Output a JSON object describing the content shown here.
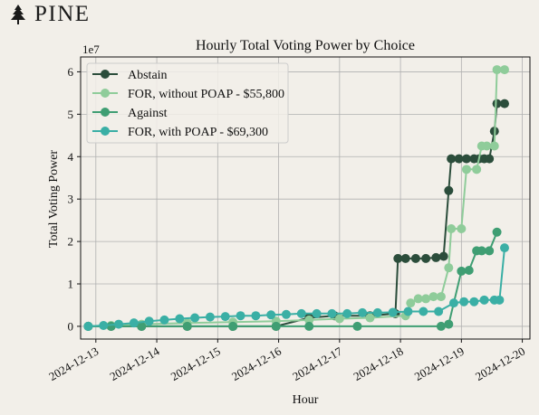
{
  "brand": {
    "logo_text": "PINE",
    "logo_icon": "pine-tree-icon"
  },
  "chart_data": {
    "type": "line",
    "title": "Hourly Total Voting Power by Choice",
    "xlabel": "Hour",
    "ylabel": "Total Voting Power",
    "y_scale_label": "1e7",
    "y_unit_multiplier": 10000000,
    "xlim": [
      "2024-12-12T18:00",
      "2024-12-20T03:00"
    ],
    "ylim": [
      -0.3,
      6.35
    ],
    "x_ticks": [
      "2024-12-13",
      "2024-12-14",
      "2024-12-15",
      "2024-12-16",
      "2024-12-17",
      "2024-12-18",
      "2024-12-19",
      "2024-12-20"
    ],
    "y_ticks": [
      0,
      1,
      2,
      3,
      4,
      5,
      6
    ],
    "grid": true,
    "legend_position": "top-left",
    "series": [
      {
        "name": "Abstain",
        "color": "#2b4d3b",
        "points": [
          [
            "2024-12-12T21:00",
            0.0
          ],
          [
            "2024-12-13T06:00",
            0.0
          ],
          [
            "2024-12-13T18:00",
            0.0
          ],
          [
            "2024-12-14T12:00",
            0.0
          ],
          [
            "2024-12-15T06:00",
            0.0
          ],
          [
            "2024-12-15T23:00",
            0.0
          ],
          [
            "2024-12-16T12:00",
            0.2
          ],
          [
            "2024-12-16T22:00",
            0.25
          ],
          [
            "2024-12-17T12:00",
            0.25
          ],
          [
            "2024-12-17T22:00",
            0.3
          ],
          [
            "2024-12-17T23:00",
            1.6
          ],
          [
            "2024-12-18T02:00",
            1.6
          ],
          [
            "2024-12-18T06:00",
            1.6
          ],
          [
            "2024-12-18T10:00",
            1.6
          ],
          [
            "2024-12-18T14:00",
            1.62
          ],
          [
            "2024-12-18T17:00",
            1.65
          ],
          [
            "2024-12-18T19:00",
            3.2
          ],
          [
            "2024-12-18T20:00",
            3.95
          ],
          [
            "2024-12-18T23:00",
            3.95
          ],
          [
            "2024-12-19T02:00",
            3.95
          ],
          [
            "2024-12-19T05:00",
            3.95
          ],
          [
            "2024-12-19T07:00",
            3.95
          ],
          [
            "2024-12-19T09:00",
            3.95
          ],
          [
            "2024-12-19T11:00",
            3.95
          ],
          [
            "2024-12-19T13:00",
            4.6
          ],
          [
            "2024-12-19T14:00",
            5.25
          ],
          [
            "2024-12-19T17:00",
            5.25
          ]
        ]
      },
      {
        "name": "FOR, without POAP - $55,800",
        "color": "#8fcc9a",
        "points": [
          [
            "2024-12-12T21:00",
            0.0
          ],
          [
            "2024-12-13T06:00",
            0.02
          ],
          [
            "2024-12-13T18:00",
            0.05
          ],
          [
            "2024-12-14T12:00",
            0.08
          ],
          [
            "2024-12-15T06:00",
            0.1
          ],
          [
            "2024-12-15T23:00",
            0.12
          ],
          [
            "2024-12-16T12:00",
            0.15
          ],
          [
            "2024-12-17T00:00",
            0.18
          ],
          [
            "2024-12-17T12:00",
            0.2
          ],
          [
            "2024-12-18T02:00",
            0.25
          ],
          [
            "2024-12-18T04:00",
            0.55
          ],
          [
            "2024-12-18T07:00",
            0.65
          ],
          [
            "2024-12-18T10:00",
            0.65
          ],
          [
            "2024-12-18T13:00",
            0.7
          ],
          [
            "2024-12-18T16:00",
            0.7
          ],
          [
            "2024-12-18T19:00",
            1.38
          ],
          [
            "2024-12-18T20:00",
            2.3
          ],
          [
            "2024-12-19T00:00",
            2.3
          ],
          [
            "2024-12-19T02:00",
            3.7
          ],
          [
            "2024-12-19T06:00",
            3.7
          ],
          [
            "2024-12-19T08:00",
            4.25
          ],
          [
            "2024-12-19T10:00",
            4.25
          ],
          [
            "2024-12-19T13:00",
            4.25
          ],
          [
            "2024-12-19T14:00",
            6.05
          ],
          [
            "2024-12-19T17:00",
            6.05
          ]
        ]
      },
      {
        "name": "Against",
        "color": "#3f9e73",
        "points": [
          [
            "2024-12-12T21:00",
            0.0
          ],
          [
            "2024-12-13T06:00",
            0.0
          ],
          [
            "2024-12-13T18:00",
            0.0
          ],
          [
            "2024-12-14T12:00",
            0.0
          ],
          [
            "2024-12-15T06:00",
            0.0
          ],
          [
            "2024-12-15T23:00",
            0.0
          ],
          [
            "2024-12-16T12:00",
            0.0
          ],
          [
            "2024-12-17T07:00",
            0.0
          ],
          [
            "2024-12-18T16:00",
            0.0
          ],
          [
            "2024-12-18T19:00",
            0.05
          ],
          [
            "2024-12-19T00:00",
            1.3
          ],
          [
            "2024-12-19T03:00",
            1.32
          ],
          [
            "2024-12-19T06:00",
            1.78
          ],
          [
            "2024-12-19T08:00",
            1.78
          ],
          [
            "2024-12-19T11:00",
            1.78
          ],
          [
            "2024-12-19T14:00",
            2.22
          ]
        ]
      },
      {
        "name": "FOR, with POAP - $69,300",
        "color": "#3aafa5",
        "points": [
          [
            "2024-12-12T21:00",
            0.0
          ],
          [
            "2024-12-13T03:00",
            0.02
          ],
          [
            "2024-12-13T09:00",
            0.05
          ],
          [
            "2024-12-13T15:00",
            0.08
          ],
          [
            "2024-12-13T21:00",
            0.12
          ],
          [
            "2024-12-14T03:00",
            0.15
          ],
          [
            "2024-12-14T09:00",
            0.18
          ],
          [
            "2024-12-14T15:00",
            0.2
          ],
          [
            "2024-12-14T21:00",
            0.22
          ],
          [
            "2024-12-15T03:00",
            0.23
          ],
          [
            "2024-12-15T09:00",
            0.25
          ],
          [
            "2024-12-15T15:00",
            0.25
          ],
          [
            "2024-12-15T21:00",
            0.27
          ],
          [
            "2024-12-16T03:00",
            0.28
          ],
          [
            "2024-12-16T09:00",
            0.3
          ],
          [
            "2024-12-16T15:00",
            0.3
          ],
          [
            "2024-12-16T21:00",
            0.3
          ],
          [
            "2024-12-17T03:00",
            0.3
          ],
          [
            "2024-12-17T09:00",
            0.32
          ],
          [
            "2024-12-17T15:00",
            0.32
          ],
          [
            "2024-12-17T21:00",
            0.33
          ],
          [
            "2024-12-18T03:00",
            0.35
          ],
          [
            "2024-12-18T09:00",
            0.35
          ],
          [
            "2024-12-18T15:00",
            0.35
          ],
          [
            "2024-12-18T21:00",
            0.55
          ],
          [
            "2024-12-19T01:00",
            0.58
          ],
          [
            "2024-12-19T05:00",
            0.58
          ],
          [
            "2024-12-19T09:00",
            0.62
          ],
          [
            "2024-12-19T13:00",
            0.62
          ],
          [
            "2024-12-19T15:00",
            0.62
          ],
          [
            "2024-12-19T17:00",
            1.85
          ]
        ]
      }
    ]
  }
}
